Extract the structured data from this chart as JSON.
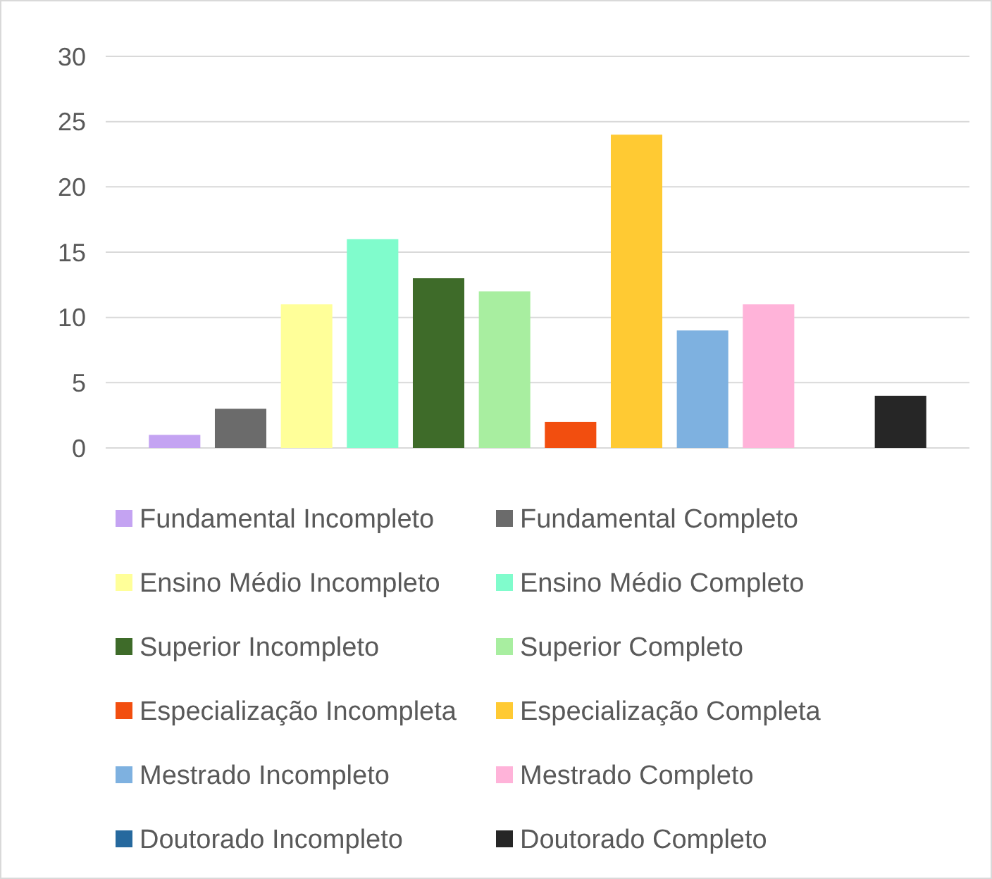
{
  "chart_data": {
    "type": "bar",
    "categories": [
      null
    ],
    "series": [
      {
        "name": "Fundamental Incompleto",
        "color": "#c4a3f2",
        "values": [
          1
        ]
      },
      {
        "name": "Fundamental Completo",
        "color": "#6b6b6b",
        "values": [
          3
        ]
      },
      {
        "name": "Ensino Médio Incompleto",
        "color": "#ffff99",
        "values": [
          11
        ]
      },
      {
        "name": "Ensino Médio Completo",
        "color": "#80fccc",
        "values": [
          16
        ]
      },
      {
        "name": "Superior Incompleto",
        "color": "#3e6b29",
        "values": [
          13
        ]
      },
      {
        "name": "Superior Completo",
        "color": "#a8eea0",
        "values": [
          12
        ]
      },
      {
        "name": "Especialização Incompleta",
        "color": "#f24e0f",
        "values": [
          2
        ]
      },
      {
        "name": "Especialização Completa",
        "color": "#ffca33",
        "values": [
          24
        ]
      },
      {
        "name": "Mestrado Incompleto",
        "color": "#7eb1e0",
        "values": [
          9
        ]
      },
      {
        "name": "Mestrado Completo",
        "color": "#ffb3d9",
        "values": [
          11
        ]
      },
      {
        "name": "Doutorado Incompleto",
        "color": "#26699e",
        "values": [
          0
        ]
      },
      {
        "name": "Doutorado Completo",
        "color": "#262626",
        "values": [
          4
        ]
      }
    ],
    "ylim": [
      0,
      30
    ],
    "yticks": [
      0,
      5,
      10,
      15,
      20,
      25,
      30
    ],
    "grid": "y",
    "legend": "bottom"
  }
}
